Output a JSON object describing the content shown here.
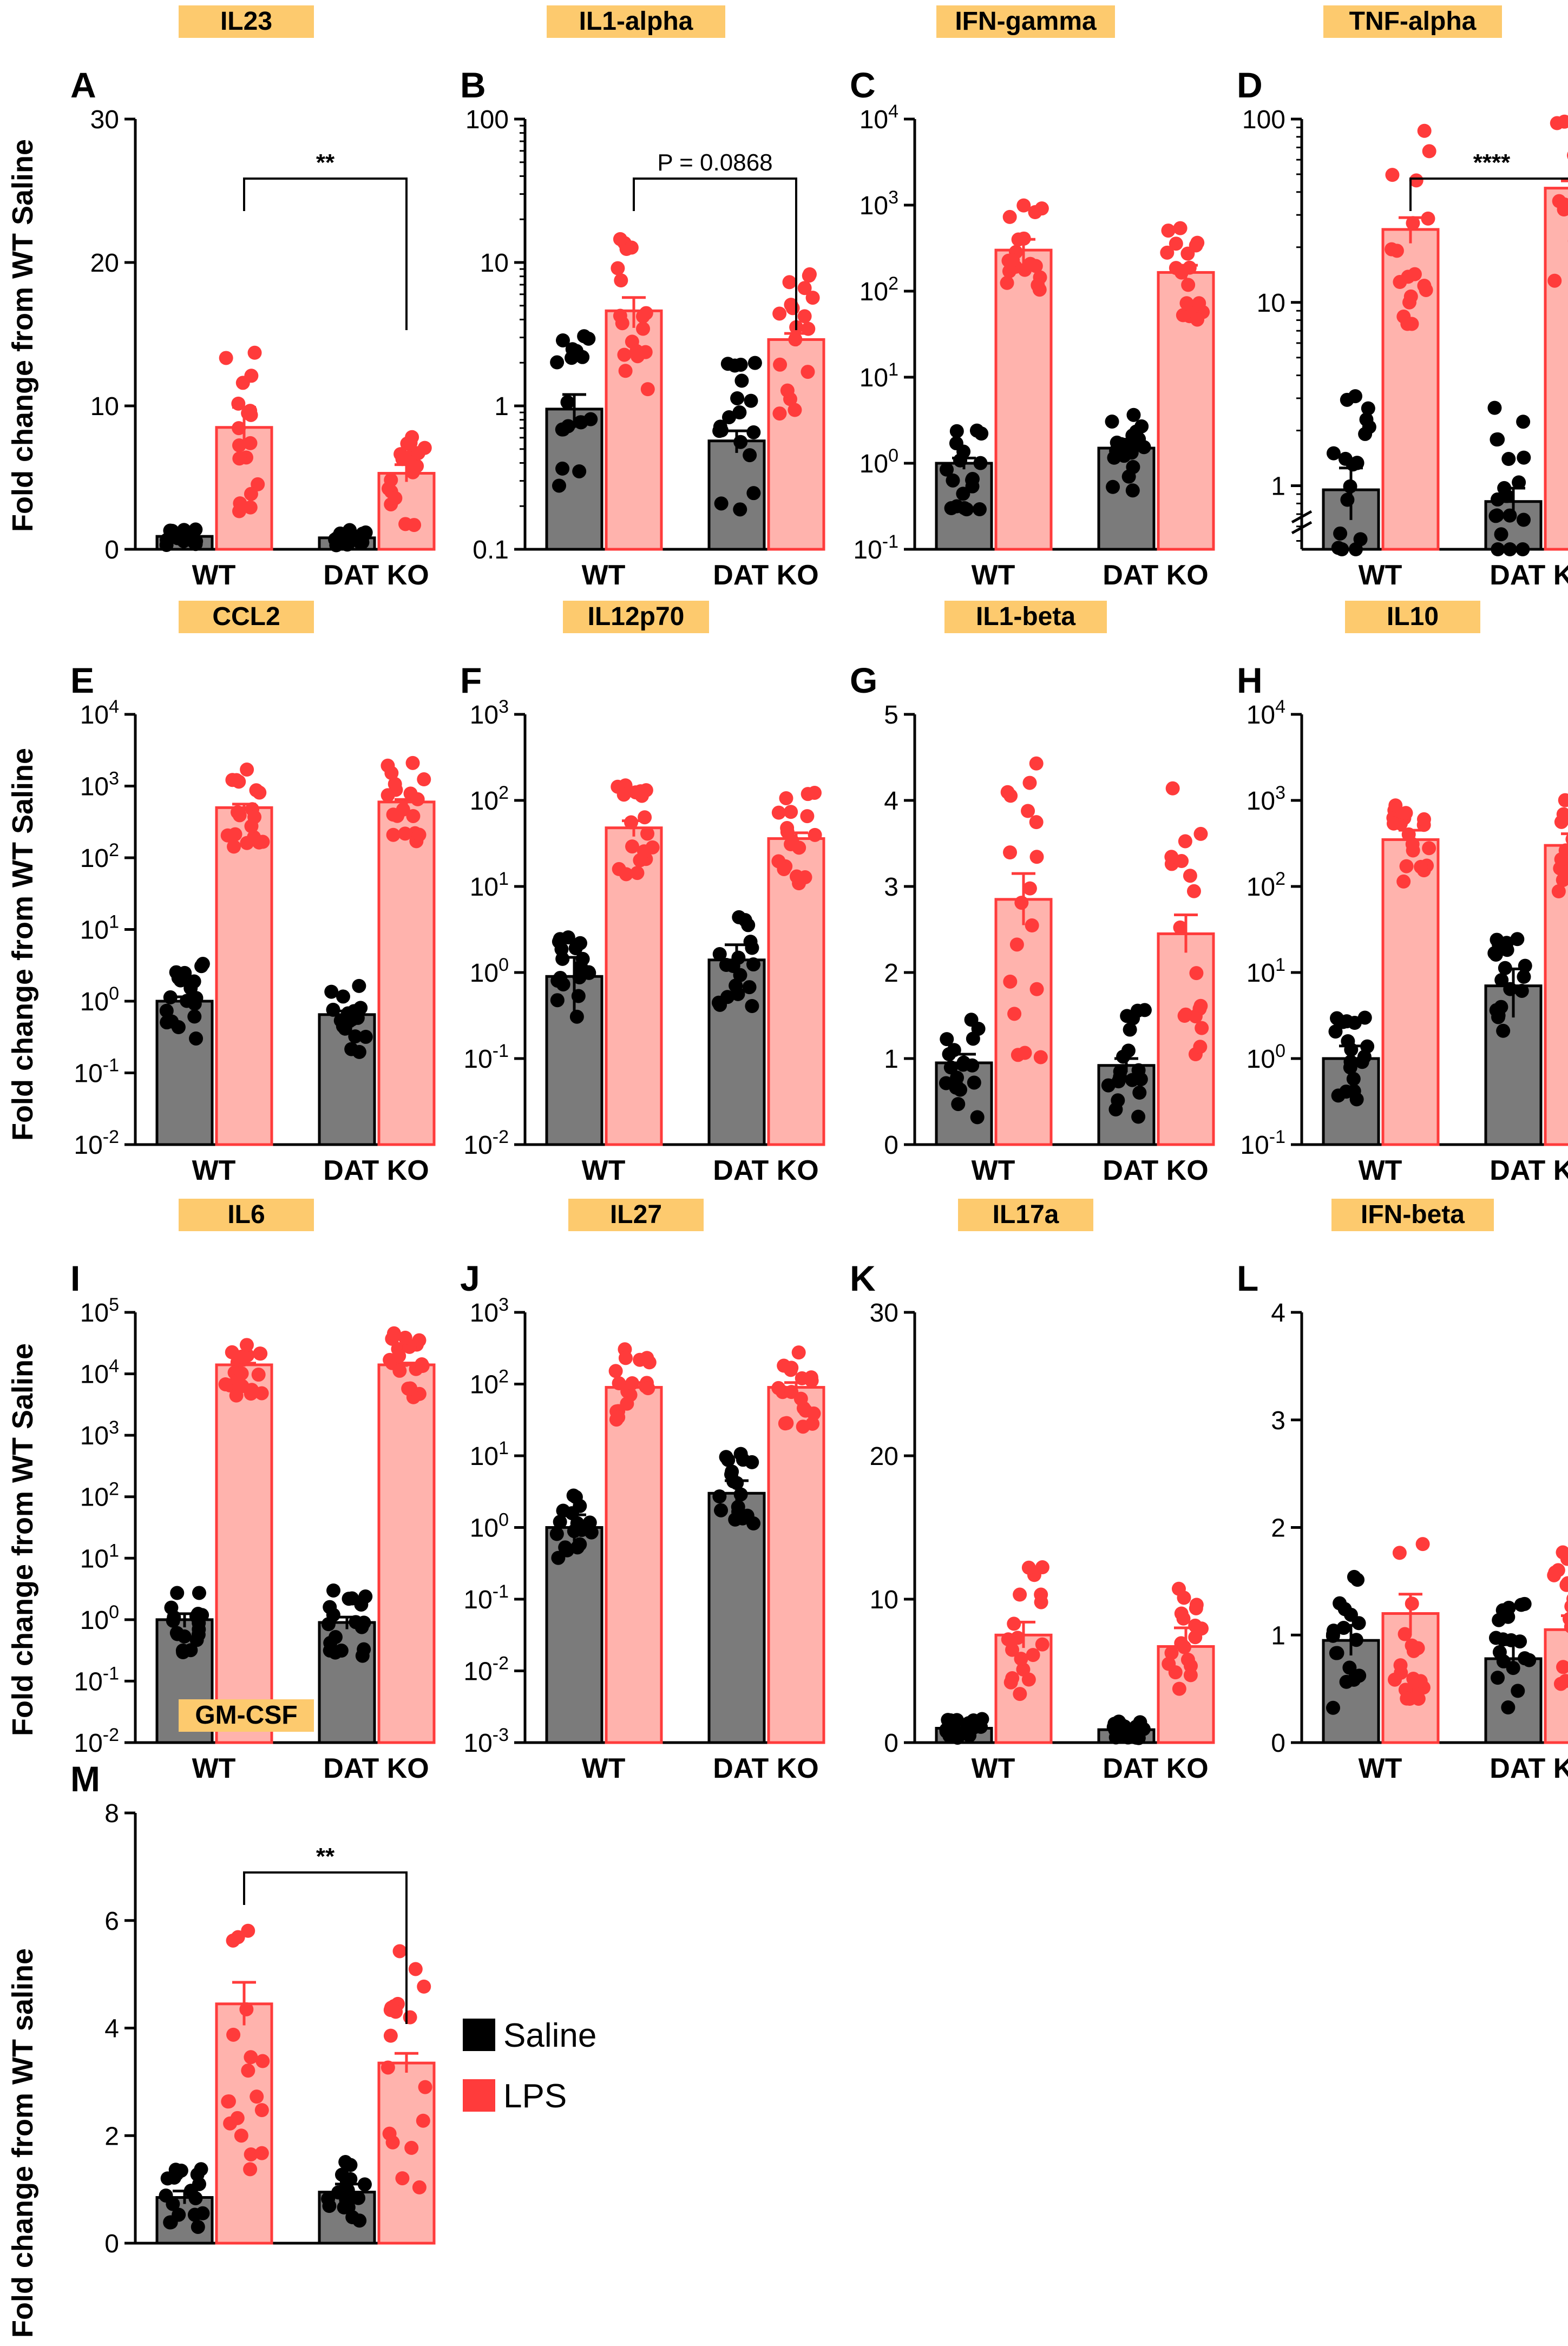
{
  "figure": {
    "group_labels": [
      "WT",
      "DAT KO"
    ],
    "legend": [
      {
        "label": "Saline",
        "color": "#000000"
      },
      {
        "label": "LPS",
        "color": "#ff3b3b"
      }
    ],
    "colors": {
      "title_box": "#fdca6e",
      "saline_bar": "#7b7b7b",
      "saline_dot": "#000000",
      "lps_bar": "#ffb3ad",
      "lps_dot": "#ff3b3b",
      "lps_edge": "#ff3b3b"
    },
    "ylabel_default": "Fold change from WT Saline",
    "ylabel_panel_m": "Fold change from WT saline"
  },
  "chart_data": [
    {
      "letter": "A",
      "title": "IL23",
      "type": "bar",
      "scale": "linear",
      "ylim": [
        0,
        30
      ],
      "ticks": [
        0,
        10,
        20,
        30
      ],
      "series": [
        {
          "name": "WT Saline",
          "mean": 0.9,
          "sem": 0.3
        },
        {
          "name": "WT LPS",
          "mean": 8.5,
          "sem": 1.4
        },
        {
          "name": "DAT KO Saline",
          "mean": 0.8,
          "sem": 0.3
        },
        {
          "name": "DAT KO LPS",
          "mean": 5.3,
          "sem": 0.6
        }
      ],
      "annotation": {
        "text": "**",
        "from": "WT LPS",
        "to": "DAT KO LPS"
      }
    },
    {
      "letter": "B",
      "title": "IL1-alpha",
      "type": "bar",
      "scale": "log",
      "ylim": [
        0.1,
        100
      ],
      "tick_labels": [
        "0.1",
        "1",
        "10",
        "100"
      ],
      "series": [
        {
          "name": "WT Saline",
          "mean": 0.95,
          "sem": 0.25
        },
        {
          "name": "WT LPS",
          "mean": 4.6,
          "sem": 1.1
        },
        {
          "name": "DAT KO Saline",
          "mean": 0.57,
          "sem": 0.1
        },
        {
          "name": "DAT KO LPS",
          "mean": 2.9,
          "sem": 0.3
        }
      ],
      "annotation": {
        "text": "P = 0.0868",
        "from": "WT LPS",
        "to": "DAT KO LPS"
      }
    },
    {
      "letter": "C",
      "title": "IFN-gamma",
      "type": "bar",
      "scale": "log",
      "ylim": [
        0.1,
        10000
      ],
      "tick_exponents": [
        "-1",
        "0",
        "1",
        "2",
        "3",
        "4"
      ],
      "series": [
        {
          "name": "WT Saline",
          "mean": 1.0,
          "sem": 0.15
        },
        {
          "name": "WT LPS",
          "mean": 300,
          "sem": 100
        },
        {
          "name": "DAT KO Saline",
          "mean": 1.5,
          "sem": 0.4
        },
        {
          "name": "DAT KO LPS",
          "mean": 165,
          "sem": 35
        }
      ]
    },
    {
      "letter": "D",
      "title": "TNF-alpha",
      "type": "bar",
      "scale": "log",
      "axis_break": true,
      "ylim": [
        0.45,
        100
      ],
      "tick_labels": [
        "1",
        "10",
        "100"
      ],
      "series": [
        {
          "name": "WT Saline",
          "mean": 0.95,
          "sem": 0.3
        },
        {
          "name": "WT LPS",
          "mean": 25,
          "sem": 4
        },
        {
          "name": "DAT KO Saline",
          "mean": 0.82,
          "sem": 0.15
        },
        {
          "name": "DAT KO LPS",
          "mean": 42,
          "sem": 4
        }
      ],
      "annotation": {
        "text": "****",
        "from": "WT LPS",
        "to": "DAT KO LPS"
      }
    },
    {
      "letter": "E",
      "title": "CCL2",
      "type": "bar",
      "scale": "log",
      "ylim": [
        0.01,
        10000
      ],
      "tick_exponents": [
        "-2",
        "-1",
        "0",
        "1",
        "2",
        "3",
        "4"
      ],
      "series": [
        {
          "name": "WT Saline",
          "mean": 1.0,
          "sem": 0.15
        },
        {
          "name": "WT LPS",
          "mean": 500,
          "sem": 60
        },
        {
          "name": "DAT KO Saline",
          "mean": 0.65,
          "sem": 0.08
        },
        {
          "name": "DAT KO LPS",
          "mean": 600,
          "sem": 50
        }
      ]
    },
    {
      "letter": "F",
      "title": "IL12p70",
      "type": "bar",
      "scale": "log",
      "ylim": [
        0.01,
        1000
      ],
      "tick_exponents": [
        "-2",
        "-1",
        "0",
        "1",
        "2",
        "3"
      ],
      "series": [
        {
          "name": "WT Saline",
          "mean": 0.9,
          "sem": 0.6
        },
        {
          "name": "WT LPS",
          "mean": 48,
          "sem": 10
        },
        {
          "name": "DAT KO Saline",
          "mean": 1.4,
          "sem": 0.7
        },
        {
          "name": "DAT KO LPS",
          "mean": 36,
          "sem": 6
        }
      ]
    },
    {
      "letter": "G",
      "title": "IL1-beta",
      "type": "bar",
      "scale": "linear",
      "ylim": [
        0,
        5
      ],
      "ticks": [
        0,
        1,
        2,
        3,
        4,
        5
      ],
      "series": [
        {
          "name": "WT Saline",
          "mean": 0.95,
          "sem": 0.1
        },
        {
          "name": "WT LPS",
          "mean": 2.85,
          "sem": 0.3
        },
        {
          "name": "DAT KO Saline",
          "mean": 0.92,
          "sem": 0.08
        },
        {
          "name": "DAT KO LPS",
          "mean": 2.45,
          "sem": 0.22
        }
      ]
    },
    {
      "letter": "H",
      "title": "IL10",
      "type": "bar",
      "scale": "log",
      "ylim": [
        0.1,
        10000
      ],
      "tick_exponents": [
        "-1",
        "0",
        "1",
        "2",
        "3",
        "4"
      ],
      "series": [
        {
          "name": "WT Saline",
          "mean": 1.0,
          "sem": 0.4
        },
        {
          "name": "WT LPS",
          "mean": 350,
          "sem": 100
        },
        {
          "name": "DAT KO Saline",
          "mean": 7,
          "sem": 4
        },
        {
          "name": "DAT KO LPS",
          "mean": 300,
          "sem": 110
        }
      ]
    },
    {
      "letter": "I",
      "title": "IL6",
      "type": "bar",
      "scale": "log",
      "ylim": [
        0.01,
        100000
      ],
      "tick_exponents": [
        "-2",
        "-1",
        "0",
        "1",
        "2",
        "3",
        "4",
        "5"
      ],
      "series": [
        {
          "name": "WT Saline",
          "mean": 1.0,
          "sem": 0.25
        },
        {
          "name": "WT LPS",
          "mean": 14000,
          "sem": 900
        },
        {
          "name": "DAT KO Saline",
          "mean": 0.9,
          "sem": 0.2
        },
        {
          "name": "DAT KO LPS",
          "mean": 14000,
          "sem": 1000
        }
      ]
    },
    {
      "letter": "J",
      "title": "IL27",
      "type": "bar",
      "scale": "log",
      "ylim": [
        0.001,
        1000
      ],
      "tick_exponents": [
        "-3",
        "-2",
        "-1",
        "0",
        "1",
        "2",
        "3"
      ],
      "series": [
        {
          "name": "WT Saline",
          "mean": 1.0,
          "sem": 0.5
        },
        {
          "name": "WT LPS",
          "mean": 90,
          "sem": 15
        },
        {
          "name": "DAT KO Saline",
          "mean": 3,
          "sem": 1.5
        },
        {
          "name": "DAT KO LPS",
          "mean": 90,
          "sem": 15
        }
      ]
    },
    {
      "letter": "K",
      "title": "IL17a",
      "type": "bar",
      "scale": "linear",
      "ylim": [
        0,
        30
      ],
      "ticks": [
        0,
        10,
        20,
        30
      ],
      "series": [
        {
          "name": "WT Saline",
          "mean": 1.0,
          "sem": 0.3
        },
        {
          "name": "WT LPS",
          "mean": 7.5,
          "sem": 0.9
        },
        {
          "name": "DAT KO Saline",
          "mean": 0.9,
          "sem": 0.3
        },
        {
          "name": "DAT KO LPS",
          "mean": 6.7,
          "sem": 1.3
        }
      ]
    },
    {
      "letter": "L",
      "title": "IFN-beta",
      "type": "bar",
      "scale": "linear",
      "ylim": [
        0,
        4
      ],
      "ticks": [
        0,
        1,
        2,
        3,
        4
      ],
      "series": [
        {
          "name": "WT Saline",
          "mean": 0.95,
          "sem": 0.14
        },
        {
          "name": "WT LPS",
          "mean": 1.2,
          "sem": 0.18
        },
        {
          "name": "DAT KO Saline",
          "mean": 0.78,
          "sem": 0.13
        },
        {
          "name": "DAT KO LPS",
          "mean": 1.05,
          "sem": 0.13
        }
      ]
    },
    {
      "letter": "M",
      "title": "GM-CSF",
      "type": "bar",
      "scale": "linear",
      "ylim": [
        0,
        8
      ],
      "ticks": [
        0,
        2,
        4,
        6,
        8
      ],
      "series": [
        {
          "name": "WT Saline",
          "mean": 0.85,
          "sem": 0.12
        },
        {
          "name": "WT LPS",
          "mean": 4.45,
          "sem": 0.4
        },
        {
          "name": "DAT KO Saline",
          "mean": 0.95,
          "sem": 0.15
        },
        {
          "name": "DAT KO LPS",
          "mean": 3.35,
          "sem": 0.18
        }
      ],
      "annotation": {
        "text": "**",
        "from": "WT LPS",
        "to": "DAT KO LPS"
      }
    }
  ]
}
